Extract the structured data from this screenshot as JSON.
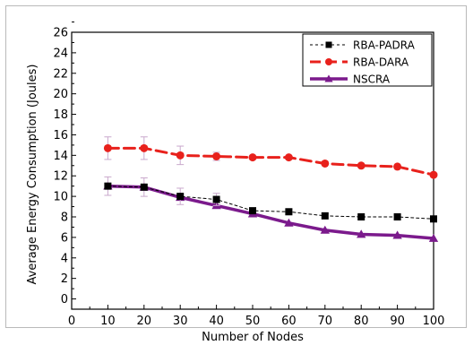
{
  "chart_data": {
    "type": "line",
    "xlabel": "Number of Nodes",
    "ylabel": "Average Energy Consumption (Joules)",
    "x": [
      10,
      20,
      30,
      40,
      50,
      60,
      70,
      80,
      90,
      100
    ],
    "xlim": [
      0,
      100
    ],
    "ylim": [
      -1,
      26
    ],
    "xticks": [
      "0",
      "10",
      "20",
      "30",
      "40",
      "50",
      "60",
      "70",
      "80",
      "90",
      "100"
    ],
    "yticks": [
      "0",
      "2",
      "4",
      "6",
      "8",
      "10",
      "12",
      "14",
      "16",
      "18",
      "20",
      "22",
      "24",
      "26"
    ],
    "grid": false,
    "legend_position": "top-right",
    "series": [
      {
        "name": "RBA-PADRA",
        "values": [
          11.0,
          10.9,
          10.0,
          9.7,
          8.6,
          8.5,
          8.1,
          8.0,
          8.0,
          7.8
        ],
        "error": [
          0.9,
          0.9,
          0.8,
          0.6,
          0,
          0,
          0,
          0,
          0,
          0
        ],
        "color": "#000000",
        "marker": "square",
        "line_style": "dashed-thin"
      },
      {
        "name": "RBA-DARA",
        "values": [
          14.7,
          14.7,
          14.0,
          13.9,
          13.8,
          13.8,
          13.2,
          13.0,
          12.9,
          12.1
        ],
        "error": [
          1.1,
          1.1,
          0.9,
          0.4,
          0,
          0,
          0,
          0,
          0,
          0
        ],
        "color": "#e8211c",
        "marker": "circle",
        "line_style": "dashed-thick"
      },
      {
        "name": "NSCRA",
        "values": [
          11.0,
          10.9,
          9.9,
          9.1,
          8.3,
          7.4,
          6.7,
          6.3,
          6.2,
          5.9
        ],
        "error": [
          0,
          0,
          0,
          0,
          0,
          0,
          0,
          0,
          0,
          0
        ],
        "color": "#7b1a8c",
        "marker": "triangle",
        "line_style": "solid-thick"
      }
    ]
  }
}
